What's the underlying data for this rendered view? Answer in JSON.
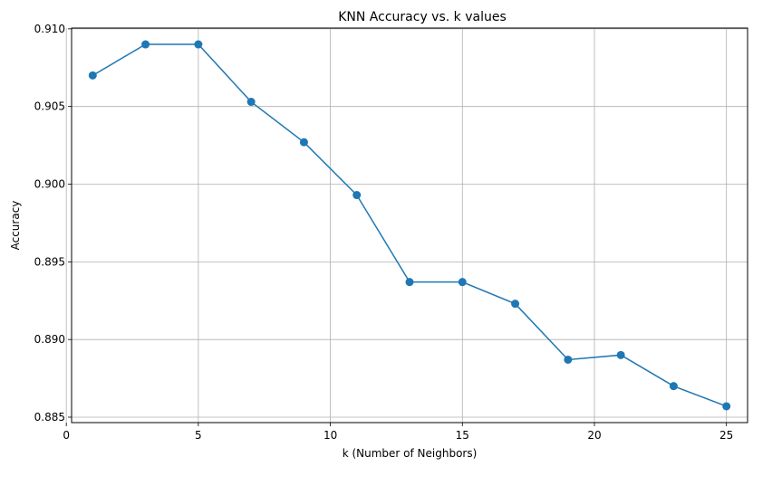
{
  "chart_data": {
    "type": "line",
    "title": "KNN Accuracy vs. k values",
    "xlabel": "k (Number of Neighbors)",
    "ylabel": "Accuracy",
    "x": [
      1,
      3,
      5,
      7,
      9,
      11,
      13,
      15,
      17,
      19,
      21,
      23,
      25
    ],
    "series": [
      {
        "values": [
          0.907,
          0.909,
          0.909,
          0.9053,
          0.9027,
          0.8993,
          0.8937,
          0.8937,
          0.8923,
          0.8887,
          0.889,
          0.887,
          0.8857
        ]
      }
    ],
    "xlim": [
      0.2,
      25.8
    ],
    "ylim": [
      0.88465,
      0.91005
    ],
    "xticks": [
      0,
      5,
      10,
      15,
      20,
      25
    ],
    "yticks": [
      0.885,
      0.89,
      0.895,
      0.9,
      0.905,
      0.91
    ],
    "xtick_labels": [
      "0",
      "5",
      "10",
      "15",
      "20",
      "25"
    ],
    "ytick_labels": [
      "0.885",
      "0.890",
      "0.895",
      "0.900",
      "0.905",
      "0.910"
    ],
    "grid": true,
    "line_color": "#1f77b4",
    "marker": "circle"
  }
}
